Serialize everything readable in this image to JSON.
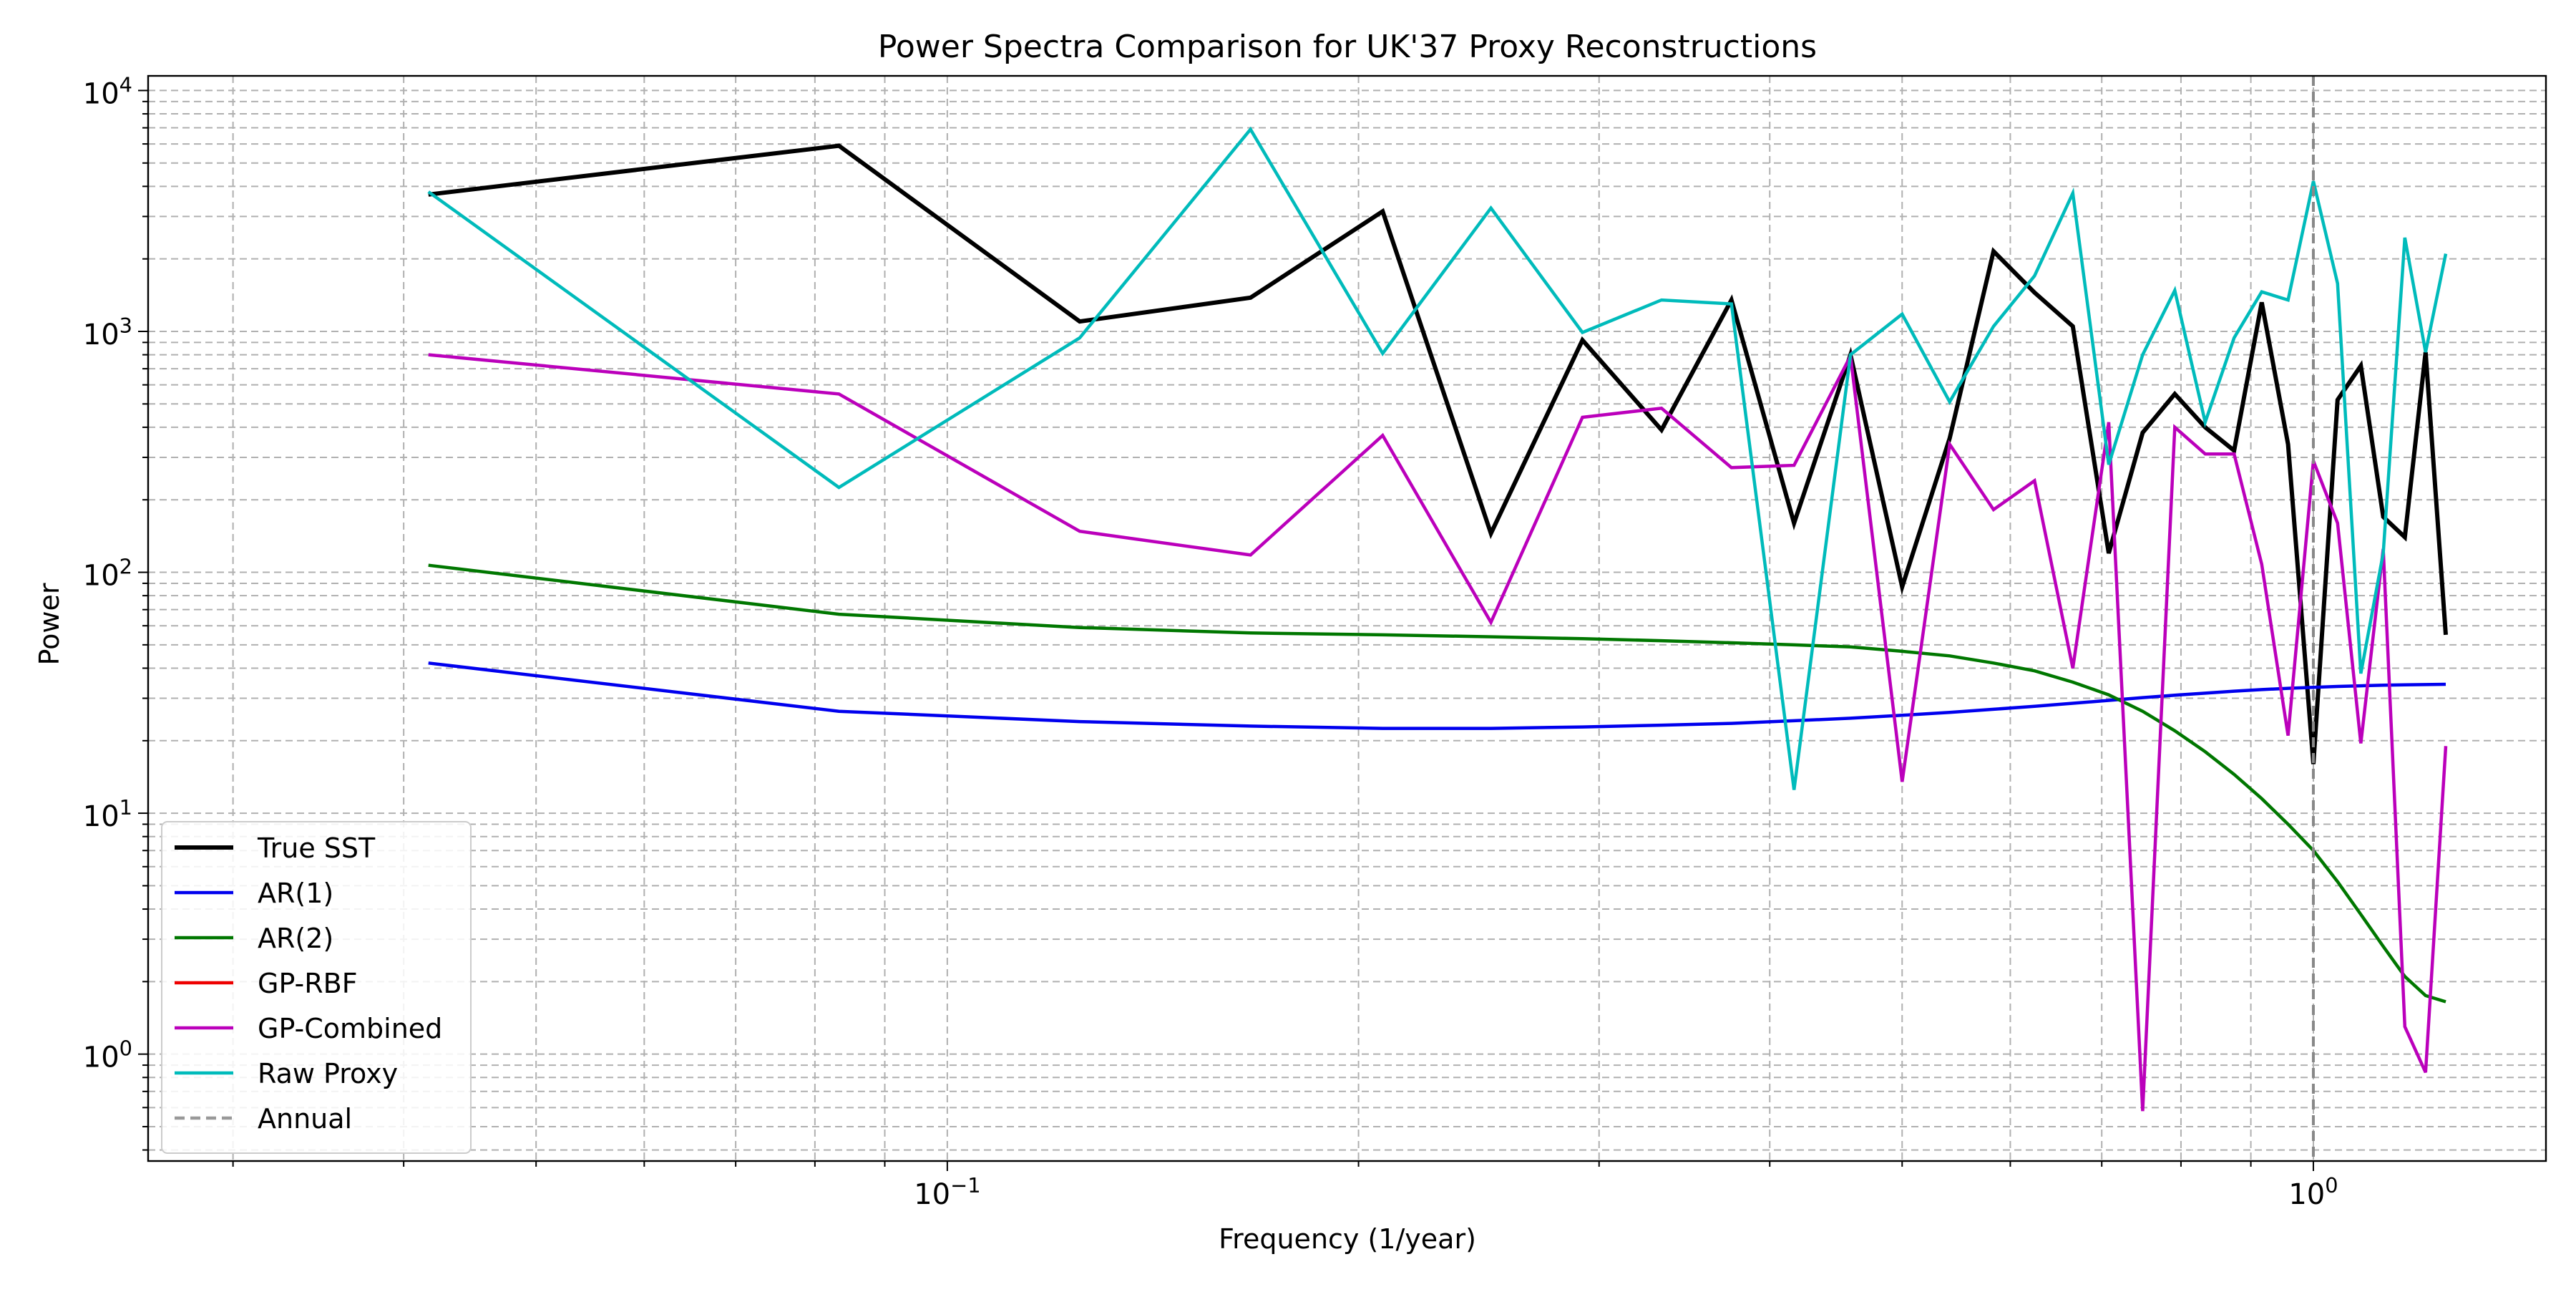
{
  "chart_data": {
    "type": "line",
    "title": "Power Spectra Comparison for UK'37 Proxy Reconstructions",
    "xlabel": "Frequency (1/year)",
    "ylabel": "Power",
    "x_scale": "log",
    "y_scale": "log",
    "xlim": [
      0.026,
      1.48
    ],
    "ylim": [
      0.36,
      11500
    ],
    "x_tick_labels": [
      "10^-1",
      "10^0"
    ],
    "y_tick_labels": [
      "10^0",
      "10^1",
      "10^2",
      "10^3",
      "10^4"
    ],
    "grid": true,
    "legend_position": "lower-left",
    "reference_line": {
      "label": "Annual",
      "x": 1.0,
      "color": "#999999",
      "style": "dashed"
    },
    "series": [
      {
        "name": "True SST",
        "color": "#000000",
        "width": "thick",
        "x": [
          0.0417,
          0.0833,
          0.125,
          0.1667,
          0.2083,
          0.25,
          0.2917,
          0.3333,
          0.375,
          0.4167,
          0.4583,
          0.5,
          0.5417,
          0.5833,
          0.625,
          0.6667,
          0.7083,
          0.75,
          0.7917,
          0.8333,
          0.875,
          0.9167,
          0.9583,
          1.0,
          1.0417,
          1.0833,
          1.125,
          1.1667,
          1.2083,
          1.25
        ],
        "values": [
          3700,
          5900,
          1100,
          1380,
          3150,
          145,
          920,
          390,
          1350,
          160,
          800,
          87,
          360,
          2150,
          1450,
          1050,
          120,
          380,
          550,
          400,
          320,
          1320,
          340,
          16,
          520,
          720,
          170,
          140,
          820,
          55
        ]
      },
      {
        "name": "AR(1)",
        "color": "#0000ee",
        "x": [
          0.0417,
          0.0833,
          0.125,
          0.1667,
          0.2083,
          0.25,
          0.2917,
          0.3333,
          0.375,
          0.4167,
          0.4583,
          0.5,
          0.5417,
          0.5833,
          0.625,
          0.6667,
          0.7083,
          0.75,
          0.7917,
          0.8333,
          0.875,
          0.9167,
          0.9583,
          1.0,
          1.0417,
          1.0833,
          1.125,
          1.1667,
          1.2083,
          1.25
        ],
        "values": [
          42,
          26.5,
          24,
          23,
          22.5,
          22.5,
          22.8,
          23.2,
          23.6,
          24.2,
          24.8,
          25.5,
          26.2,
          27,
          27.8,
          28.6,
          29.4,
          30.2,
          30.9,
          31.5,
          32.1,
          32.6,
          33,
          33.3,
          33.6,
          33.8,
          34,
          34.1,
          34.2,
          34.3
        ]
      },
      {
        "name": "AR(2)",
        "color": "#007700",
        "x": [
          0.0417,
          0.0833,
          0.125,
          0.1667,
          0.2083,
          0.25,
          0.2917,
          0.3333,
          0.375,
          0.4167,
          0.4583,
          0.5,
          0.5417,
          0.5833,
          0.625,
          0.6667,
          0.7083,
          0.75,
          0.7917,
          0.8333,
          0.875,
          0.9167,
          0.9583,
          1.0,
          1.0417,
          1.0833,
          1.125,
          1.1667,
          1.2083,
          1.25
        ],
        "values": [
          107,
          67,
          59,
          56,
          55,
          54,
          53,
          52,
          51,
          50,
          49,
          47,
          45,
          42,
          39,
          35,
          31,
          26.5,
          22,
          18,
          14.5,
          11.5,
          9,
          7,
          5.2,
          3.8,
          2.8,
          2.1,
          1.75,
          1.65
        ]
      },
      {
        "name": "GP-RBF",
        "color": "#ee0000",
        "x": [],
        "values": []
      },
      {
        "name": "GP-Combined",
        "color": "#bb00bb",
        "x": [
          0.0417,
          0.0833,
          0.125,
          0.1667,
          0.2083,
          0.25,
          0.2917,
          0.3333,
          0.375,
          0.4167,
          0.4583,
          0.5,
          0.5417,
          0.5833,
          0.625,
          0.6667,
          0.7083,
          0.75,
          0.7917,
          0.8333,
          0.875,
          0.9167,
          0.9583,
          1.0,
          1.0417,
          1.0833,
          1.125,
          1.1667,
          1.2083,
          1.25
        ],
        "values": [
          800,
          550,
          148,
          118,
          370,
          62,
          440,
          480,
          272,
          278,
          790,
          13.5,
          340,
          182,
          240,
          40,
          420,
          0.58,
          400,
          310,
          310,
          108,
          21,
          290,
          160,
          19.5,
          125,
          1.3,
          0.84,
          19
        ]
      },
      {
        "name": "Raw Proxy",
        "color": "#00bbbb",
        "x": [
          0.0417,
          0.0833,
          0.125,
          0.1667,
          0.2083,
          0.25,
          0.2917,
          0.3333,
          0.375,
          0.4167,
          0.4583,
          0.5,
          0.5417,
          0.5833,
          0.625,
          0.6667,
          0.7083,
          0.75,
          0.7917,
          0.8333,
          0.875,
          0.9167,
          0.9583,
          1.0,
          1.0417,
          1.0833,
          1.125,
          1.1667,
          1.2083,
          1.25
        ],
        "values": [
          3800,
          225,
          940,
          6900,
          810,
          3250,
          990,
          1350,
          1300,
          12.5,
          800,
          1180,
          510,
          1050,
          1700,
          3750,
          280,
          800,
          1480,
          420,
          940,
          1460,
          1350,
          4200,
          1580,
          38,
          120,
          2450,
          820,
          2100
        ]
      }
    ],
    "legend": [
      "True SST",
      "AR(1)",
      "AR(2)",
      "GP-RBF",
      "GP-Combined",
      "Raw Proxy",
      "Annual"
    ]
  }
}
